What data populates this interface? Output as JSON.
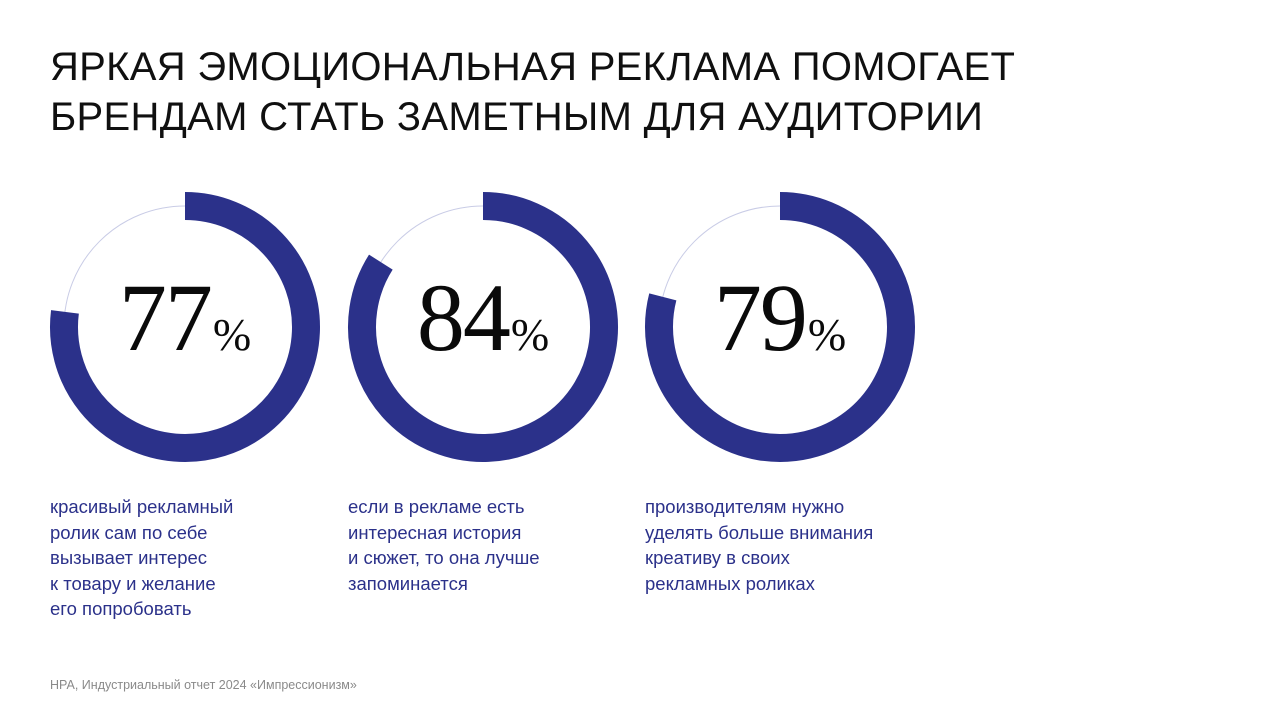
{
  "title_lines": [
    "ЯРКАЯ ЭМОЦИОНАЛЬНАЯ РЕКЛАМА ПОМОГАЕТ",
    "БРЕНДАМ СТАТЬ ЗАМЕТНЫМ ДЛЯ АУДИТОРИИ"
  ],
  "chart_data": [
    {
      "type": "pie",
      "variant": "donut",
      "values": [
        77,
        23
      ],
      "value_label": "77",
      "unit": "%",
      "caption": "красивый рекламный\nролик сам по себе\nвызывает интерес\nк товару и желание\nего попробовать"
    },
    {
      "type": "pie",
      "variant": "donut",
      "values": [
        84,
        16
      ],
      "value_label": "84",
      "unit": "%",
      "caption": "если в рекламе есть\nинтересная история\nи сюжет, то она лучше\nзапоминается"
    },
    {
      "type": "pie",
      "variant": "donut",
      "values": [
        79,
        21
      ],
      "value_label": "79",
      "unit": "%",
      "caption": "производителям нужно\nуделять больше внимания\nкреативу в своих\nрекламных роликах"
    }
  ],
  "colors": {
    "arc": "#2b318a",
    "track": "#c9cce6",
    "caption": "#2b318a",
    "title": "#101010",
    "source": "#8a8a8a"
  },
  "source": "НРА, Индустриальный отчет 2024 «Импрессионизм»"
}
